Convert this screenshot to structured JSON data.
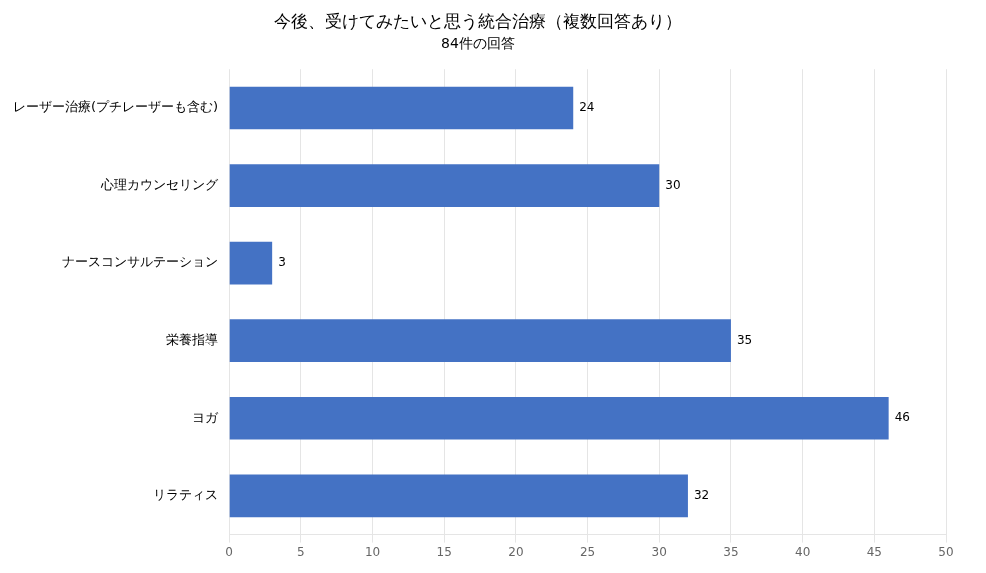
{
  "chart_data": {
    "type": "bar",
    "orientation": "horizontal",
    "title": "今後、受けてみたいと思う統合治療（複数回答あり）",
    "subtitle": "84件の回答",
    "categories": [
      "リラティス",
      "ヨガ",
      "栄養指導",
      "ナースコンサルテーション",
      "心理カウンセリング",
      "レーザー治療(プチレーザーも含む)"
    ],
    "values": [
      32,
      46,
      35,
      3,
      30,
      24
    ],
    "color": "#4472C4",
    "xlim": [
      0,
      50
    ],
    "xticks": [
      0,
      5,
      10,
      15,
      20,
      25,
      30,
      35,
      40,
      45,
      50
    ],
    "grid": true,
    "data_labels": true
  }
}
